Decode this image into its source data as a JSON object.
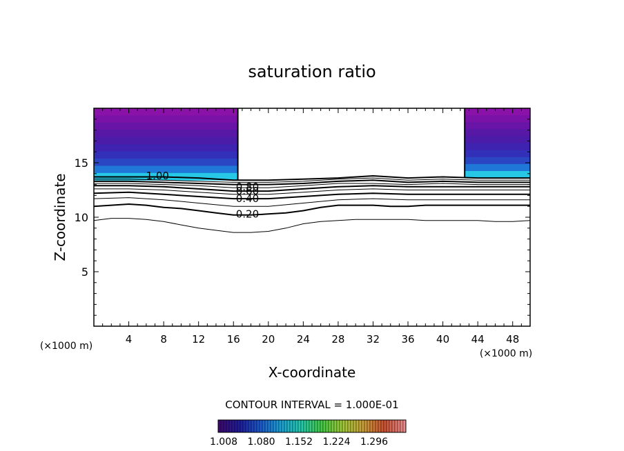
{
  "chart_data": {
    "type": "contour",
    "title": "saturation ratio",
    "xlabel": "X-coordinate",
    "ylabel": "Z-coordinate",
    "x_unit": "(×1000 m)",
    "z_unit": "(×1000 m)",
    "xlim": [
      0,
      50
    ],
    "ylim": [
      0,
      20
    ],
    "x_ticks": [
      4,
      8,
      12,
      16,
      20,
      24,
      28,
      32,
      36,
      40,
      44,
      48
    ],
    "y_ticks": [
      5,
      10,
      15
    ],
    "contour_interval_label": "CONTOUR INTERVAL = 1.000E-01",
    "contour_labels": [
      {
        "text": "1.00",
        "x": 7.3,
        "z": 13.8
      },
      {
        "text": "0.80",
        "x": 17.6,
        "z": 12.8
      },
      {
        "text": "0.60",
        "x": 17.6,
        "z": 12.4
      },
      {
        "text": "0.40",
        "x": 17.6,
        "z": 11.7
      },
      {
        "text": "0.20",
        "x": 17.6,
        "z": 10.3
      }
    ],
    "contour_lines": [
      {
        "level": 0.1,
        "x": [
          0,
          2,
          4,
          6,
          8,
          10,
          12,
          14,
          16,
          18,
          20,
          22,
          24,
          26,
          28,
          30,
          32,
          34,
          36,
          38,
          40,
          42,
          44,
          46,
          48,
          50
        ],
        "z": [
          9.7,
          9.9,
          9.9,
          9.8,
          9.6,
          9.3,
          9.0,
          8.8,
          8.6,
          8.6,
          8.7,
          9.0,
          9.4,
          9.6,
          9.7,
          9.8,
          9.8,
          9.8,
          9.8,
          9.7,
          9.7,
          9.7,
          9.7,
          9.6,
          9.6,
          9.7
        ]
      },
      {
        "level": 0.2,
        "x": [
          0,
          2,
          4,
          6,
          8,
          10,
          12,
          14,
          16,
          18,
          20,
          22,
          24,
          26,
          28,
          30,
          32,
          34,
          36,
          38,
          40,
          42,
          44,
          46,
          48,
          50
        ],
        "z": [
          11.0,
          11.1,
          11.2,
          11.1,
          10.9,
          10.8,
          10.6,
          10.4,
          10.2,
          10.2,
          10.3,
          10.4,
          10.6,
          10.9,
          11.1,
          11.1,
          11.1,
          11.0,
          11.0,
          11.1,
          11.1,
          11.1,
          11.1,
          11.1,
          11.1,
          11.1
        ]
      },
      {
        "level": 0.3,
        "x": [
          0,
          4,
          8,
          12,
          16,
          20,
          24,
          28,
          32,
          36,
          40,
          44,
          48,
          50
        ],
        "z": [
          11.7,
          11.8,
          11.6,
          11.3,
          11.0,
          11.0,
          11.3,
          11.6,
          11.7,
          11.6,
          11.6,
          11.6,
          11.6,
          11.6
        ]
      },
      {
        "level": 0.4,
        "x": [
          0,
          4,
          8,
          12,
          16,
          20,
          24,
          28,
          32,
          36,
          40,
          44,
          48,
          50
        ],
        "z": [
          12.2,
          12.3,
          12.1,
          11.9,
          11.7,
          11.7,
          11.9,
          12.1,
          12.2,
          12.1,
          12.1,
          12.1,
          12.1,
          12.1
        ]
      },
      {
        "level": 0.5,
        "x": [
          0,
          4,
          8,
          12,
          16,
          20,
          24,
          28,
          32,
          36,
          40,
          44,
          48,
          50
        ],
        "z": [
          12.6,
          12.6,
          12.5,
          12.3,
          12.1,
          12.1,
          12.3,
          12.5,
          12.6,
          12.5,
          12.5,
          12.5,
          12.5,
          12.5
        ]
      },
      {
        "level": 0.6,
        "x": [
          0,
          4,
          8,
          12,
          16,
          20,
          24,
          28,
          32,
          36,
          40,
          44,
          48,
          50
        ],
        "z": [
          12.9,
          12.9,
          12.8,
          12.6,
          12.4,
          12.4,
          12.6,
          12.8,
          12.9,
          12.8,
          12.8,
          12.8,
          12.8,
          12.8
        ]
      },
      {
        "level": 0.7,
        "x": [
          0,
          4,
          8,
          12,
          16,
          20,
          24,
          28,
          32,
          36,
          40,
          44,
          48,
          50
        ],
        "z": [
          13.1,
          13.1,
          13.0,
          12.9,
          12.7,
          12.7,
          12.9,
          13.1,
          13.1,
          13.0,
          13.1,
          13.0,
          13.0,
          13.0
        ]
      },
      {
        "level": 0.8,
        "x": [
          0,
          4,
          8,
          12,
          16,
          20,
          24,
          28,
          32,
          36,
          40,
          44,
          48,
          50
        ],
        "z": [
          13.3,
          13.3,
          13.2,
          13.1,
          13.0,
          13.0,
          13.1,
          13.3,
          13.4,
          13.2,
          13.3,
          13.2,
          13.2,
          13.2
        ]
      },
      {
        "level": 0.9,
        "x": [
          0,
          4,
          8,
          12,
          16,
          20,
          24,
          28,
          32,
          36,
          40,
          44,
          48,
          50
        ],
        "z": [
          13.5,
          13.5,
          13.4,
          13.3,
          13.2,
          13.2,
          13.3,
          13.5,
          13.6,
          13.4,
          13.5,
          13.4,
          13.4,
          13.4
        ]
      },
      {
        "level": 1.0,
        "x": [
          0,
          4,
          8,
          12,
          16,
          20,
          24,
          28,
          32,
          36,
          40,
          44,
          48,
          50
        ],
        "z": [
          13.7,
          13.7,
          13.7,
          13.6,
          13.4,
          13.4,
          13.5,
          13.6,
          13.8,
          13.6,
          13.7,
          13.6,
          13.6,
          13.6
        ]
      }
    ],
    "supersaturated_regions": [
      {
        "x_range": [
          0,
          16.5
        ],
        "z_range": [
          13.4,
          20
        ]
      },
      {
        "x_range": [
          42.5,
          50
        ],
        "z_range": [
          13.6,
          20
        ]
      }
    ],
    "colorbar": {
      "ticks": [
        "1.008",
        "1.080",
        "1.152",
        "1.224",
        "1.296"
      ],
      "colors": [
        "#3c0a6e",
        "#1e1e96",
        "#1e5ac8",
        "#1ea0d2",
        "#28c8aa",
        "#46c846",
        "#a0c83c",
        "#c8a03c",
        "#c85032",
        "#e68c8c"
      ]
    },
    "fill_colors": [
      "#8a12a8",
      "#7a12a8",
      "#6814a6",
      "#5818a6",
      "#4a1ca8",
      "#3e22b0",
      "#3230b8",
      "#2a46c2",
      "#1f78d8",
      "#26c8e6"
    ]
  }
}
